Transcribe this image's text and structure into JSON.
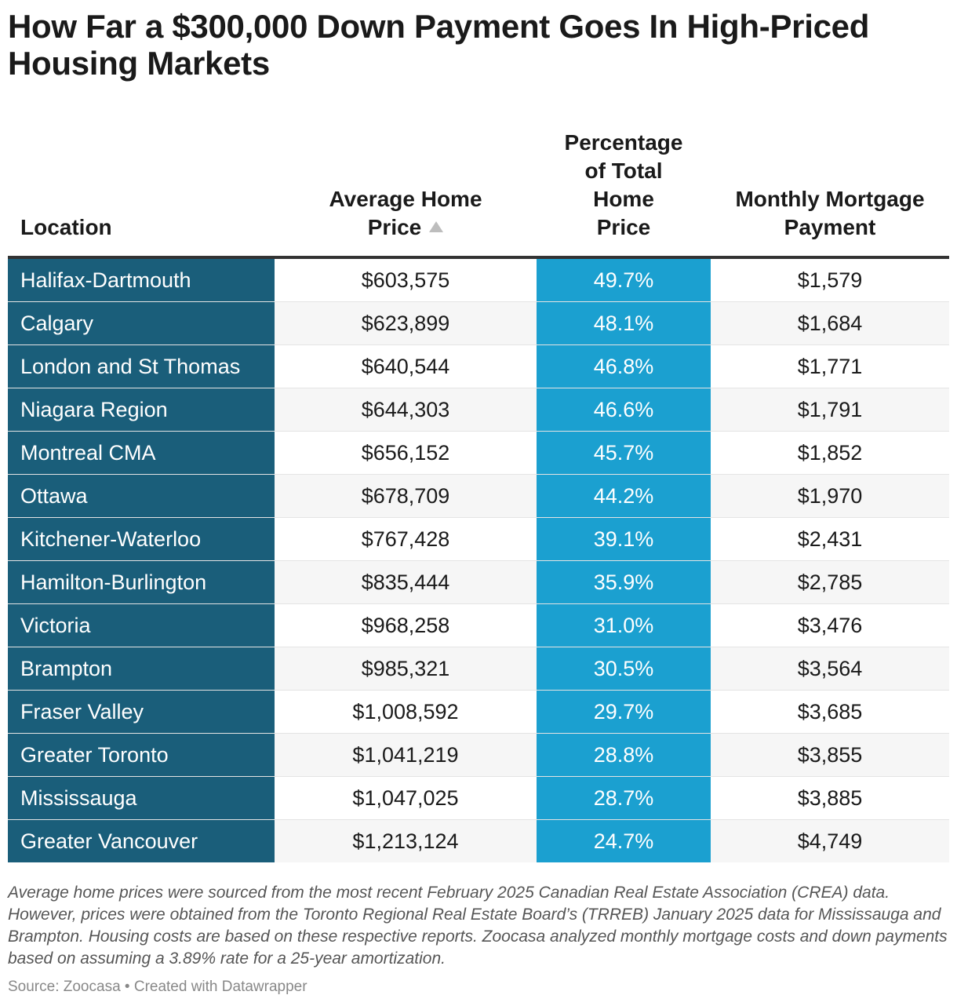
{
  "chart_data": {
    "type": "table",
    "title": "How Far a $300,000 Down Payment Goes In High-Priced Housing Markets",
    "columns": [
      "Location",
      "Average Home Price",
      "Percentage of Total Home Price",
      "Monthly Mortgage Payment"
    ],
    "sorted_by": "Average Home Price",
    "sort_direction": "ascending",
    "rows": [
      {
        "location": "Halifax-Dartmouth",
        "price": "$603,575",
        "pct": "49.7%",
        "payment": "$1,579"
      },
      {
        "location": "Calgary",
        "price": "$623,899",
        "pct": "48.1%",
        "payment": "$1,684"
      },
      {
        "location": "London and St Thomas",
        "price": "$640,544",
        "pct": "46.8%",
        "payment": "$1,771"
      },
      {
        "location": "Niagara Region",
        "price": "$644,303",
        "pct": "46.6%",
        "payment": "$1,791"
      },
      {
        "location": "Montreal CMA",
        "price": "$656,152",
        "pct": "45.7%",
        "payment": "$1,852"
      },
      {
        "location": "Ottawa",
        "price": "$678,709",
        "pct": "44.2%",
        "payment": "$1,970"
      },
      {
        "location": "Kitchener-Waterloo",
        "price": "$767,428",
        "pct": "39.1%",
        "payment": "$2,431"
      },
      {
        "location": "Hamilton-Burlington",
        "price": "$835,444",
        "pct": "35.9%",
        "payment": "$2,785"
      },
      {
        "location": "Victoria",
        "price": "$968,258",
        "pct": "31.0%",
        "payment": "$3,476"
      },
      {
        "location": "Brampton",
        "price": "$985,321",
        "pct": "30.5%",
        "payment": "$3,564"
      },
      {
        "location": "Fraser Valley",
        "price": "$1,008,592",
        "pct": "29.7%",
        "payment": "$3,685"
      },
      {
        "location": "Greater Toronto",
        "price": "$1,041,219",
        "pct": "28.8%",
        "payment": "$3,855"
      },
      {
        "location": "Mississauga",
        "price": "$1,047,025",
        "pct": "28.7%",
        "payment": "$3,885"
      },
      {
        "location": "Greater Vancouver",
        "price": "$1,213,124",
        "pct": "24.7%",
        "payment": "$4,749"
      }
    ],
    "notes": "Average home prices were sourced from the most recent February 2025 Canadian Real Estate Association (CREA) data. However, prices were obtained from the Toronto Regional Real Estate Board’s (TRREB) January 2025 data for Mississauga and Brampton. Housing costs are based on these respective reports. Zoocasa analyzed monthly mortgage costs and down payments based on assuming a 3.89% rate for a 25-year amortization.",
    "source": "Source: Zoocasa • Created with Datawrapper"
  },
  "headers": {
    "location": "Location",
    "price_line1": "Average Home",
    "price_line2": "Price",
    "pct_line1": "Percentage",
    "pct_line2": "of Total",
    "pct_line3": "Home",
    "pct_line4": "Price",
    "pay_line1": "Monthly Mortgage",
    "pay_line2": "Payment"
  },
  "colors": {
    "location_column": "#1a5e7a",
    "percentage_column": "#1ba0d0",
    "sort_icon": "#bdbdbd",
    "header_rule": "#333333"
  },
  "icons": {
    "sort": "sort-ascending-triangle-icon"
  }
}
